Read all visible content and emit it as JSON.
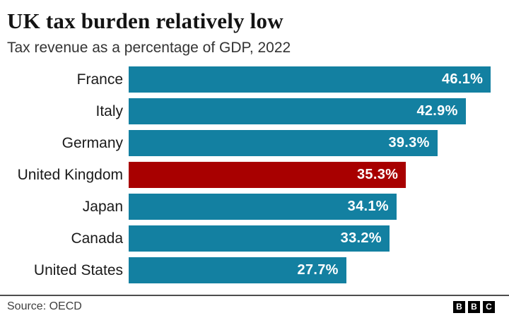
{
  "header": {
    "title": "UK tax burden relatively low",
    "subtitle": "Tax revenue as a percentage of GDP, 2022"
  },
  "chart_data": {
    "type": "bar",
    "orientation": "horizontal",
    "title": "UK tax burden relatively low",
    "subtitle": "Tax revenue as a percentage of GDP, 2022",
    "categories": [
      "France",
      "Italy",
      "Germany",
      "United Kingdom",
      "Japan",
      "Canada",
      "United States"
    ],
    "values": [
      46.1,
      42.9,
      39.3,
      35.3,
      34.1,
      33.2,
      27.7
    ],
    "value_labels": [
      "46.1%",
      "42.9%",
      "39.3%",
      "35.3%",
      "34.1%",
      "33.2%",
      "27.7%"
    ],
    "highlight_index": 3,
    "highlight_category": "United Kingdom",
    "bar_color": "#1380A1",
    "highlight_color": "#A80000",
    "value_label_color": "#FFFFFF",
    "xlim": [
      0,
      47.7
    ],
    "grid": false,
    "legend": false,
    "xlabel": "",
    "ylabel": ""
  },
  "footer": {
    "source": "Source: OECD",
    "logo_letters": [
      "B",
      "B",
      "C"
    ]
  }
}
